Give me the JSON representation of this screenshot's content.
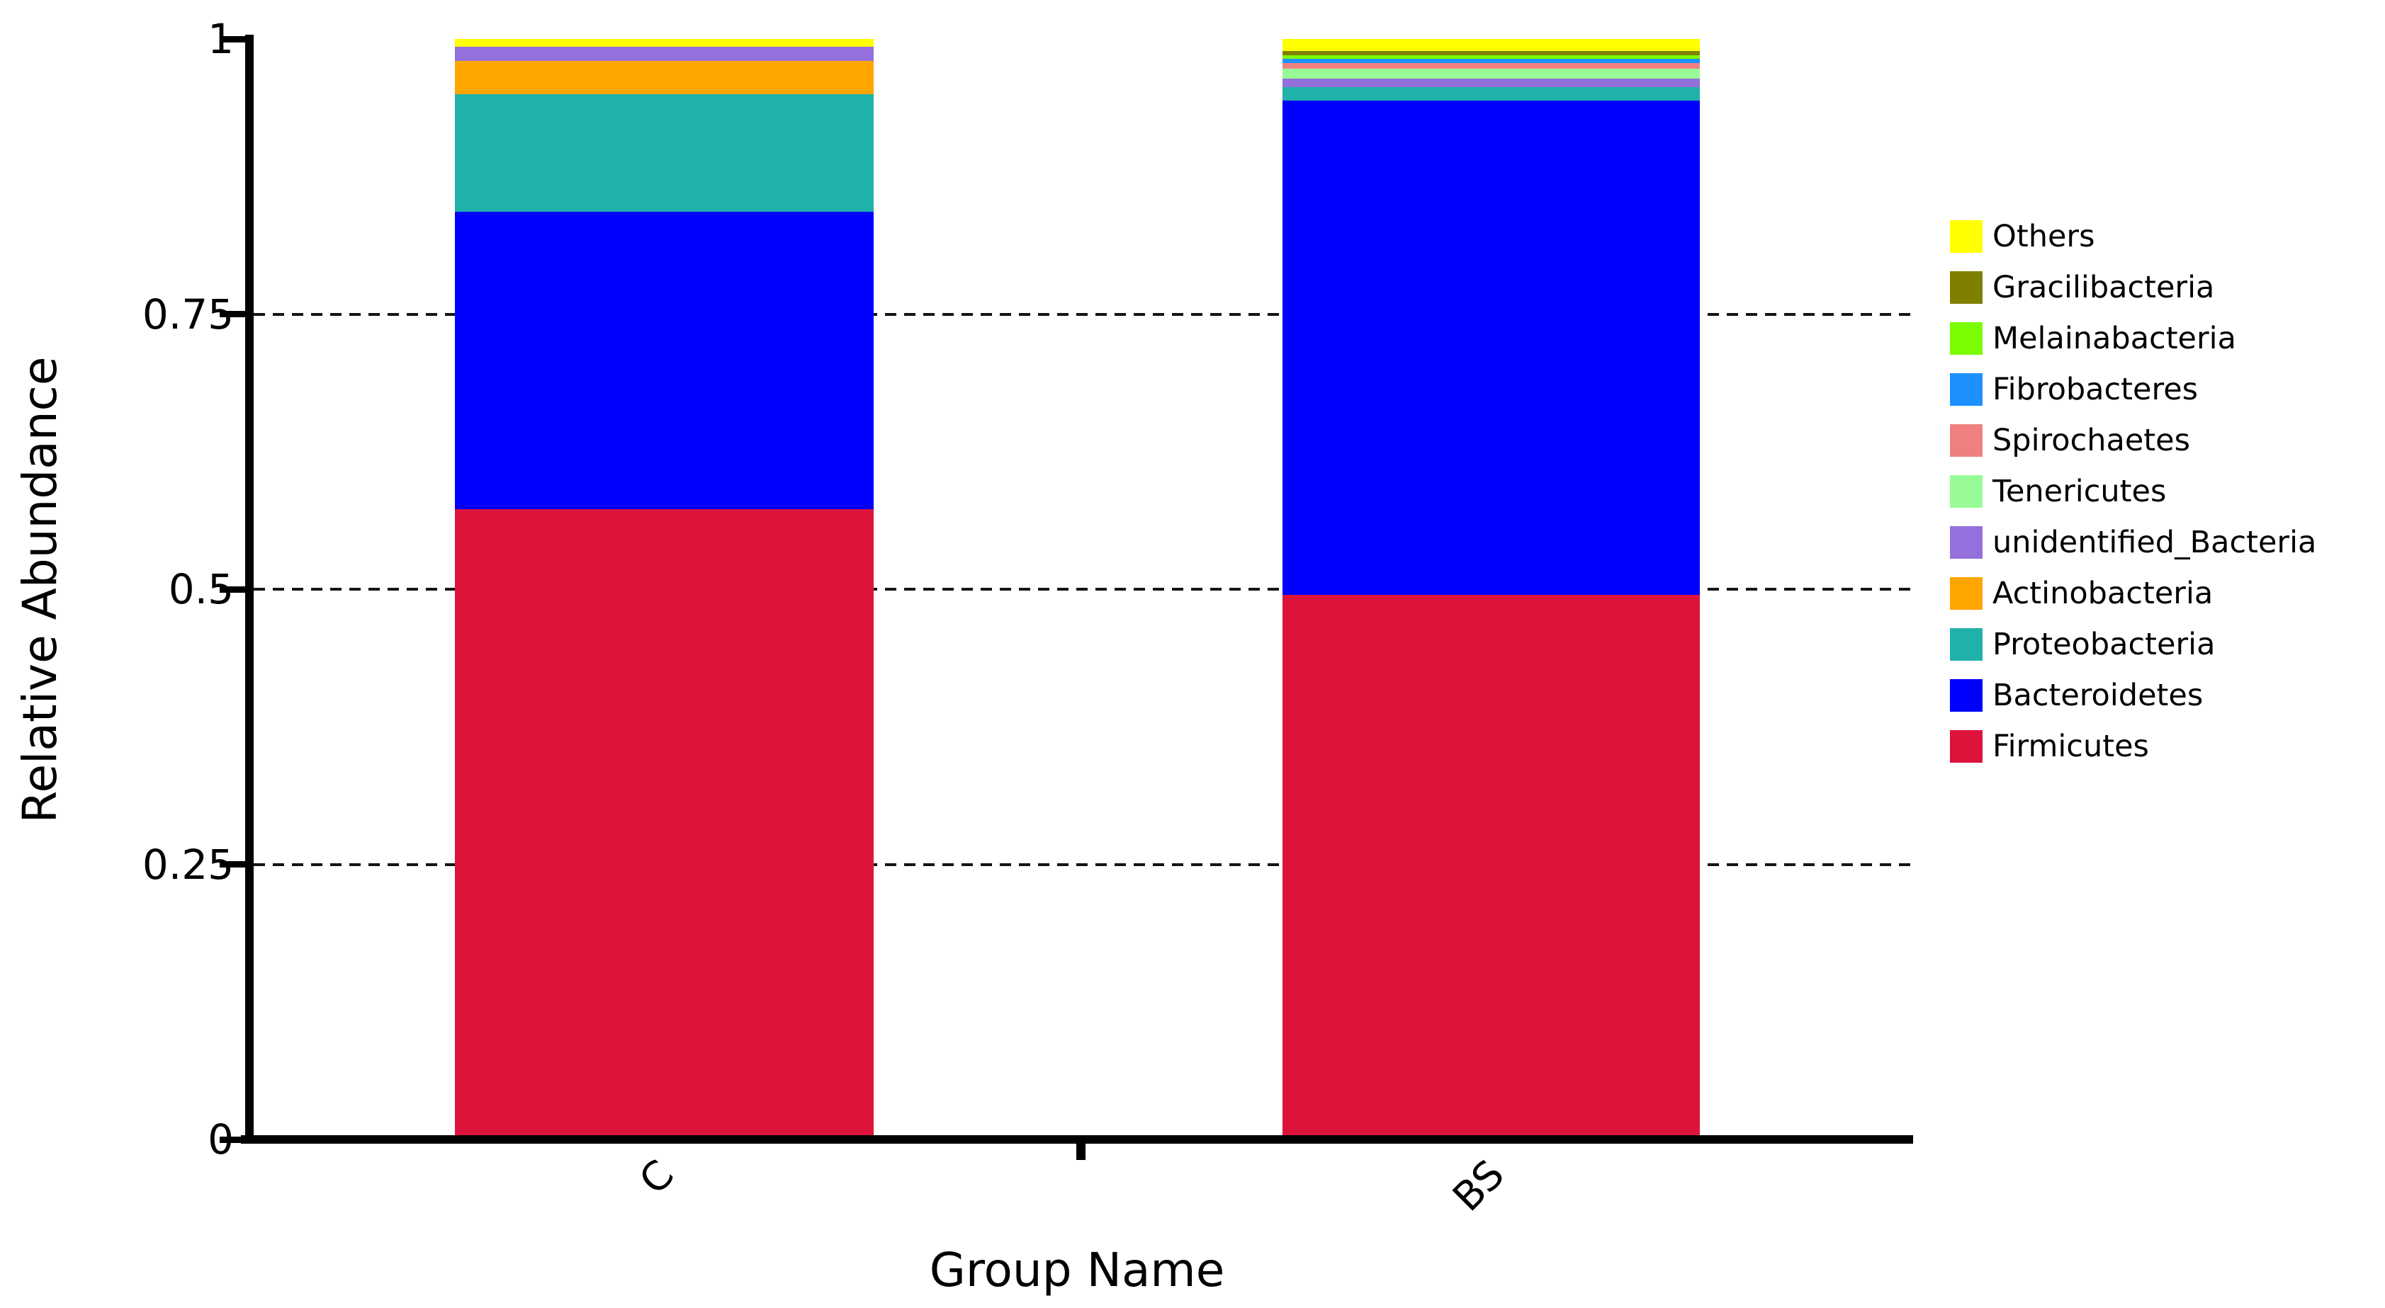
{
  "chart_data": {
    "type": "bar",
    "subtype": "stacked-vertical",
    "title": "",
    "xlabel": "Group Name",
    "ylabel": "Relative Abundance",
    "categories": [
      "C",
      "BS"
    ],
    "ylim": [
      0,
      1
    ],
    "yticks": [
      0,
      0.25,
      0.5,
      0.75,
      1
    ],
    "ytick_labels": [
      "0",
      "0.25",
      "0.5",
      "0.75",
      "1"
    ],
    "grid_values": [
      0.25,
      0.5,
      0.75
    ],
    "grid_style": "dashed",
    "legend_position": "right",
    "legend_order_top_to_bottom": [
      "Others",
      "Gracilibacteria",
      "Melainabacteria",
      "Fibrobacteres",
      "Spirochaetes",
      "Tenericutes",
      "unidentified_Bacteria",
      "Actinobacteria",
      "Proteobacteria",
      "Bacteroidetes",
      "Firmicutes"
    ],
    "series": [
      {
        "name": "Firmicutes",
        "color": "#DC143C",
        "values": [
          0.573,
          0.495
        ]
      },
      {
        "name": "Bacteroidetes",
        "color": "#0000FF",
        "values": [
          0.27,
          0.449
        ]
      },
      {
        "name": "Proteobacteria",
        "color": "#20B2AA",
        "values": [
          0.107,
          0.012
        ]
      },
      {
        "name": "Actinobacteria",
        "color": "#FFA500",
        "values": [
          0.03,
          0.0
        ]
      },
      {
        "name": "unidentified_Bacteria",
        "color": "#9370DB",
        "values": [
          0.013,
          0.008
        ]
      },
      {
        "name": "Tenericutes",
        "color": "#98FB98",
        "values": [
          0.0,
          0.009
        ]
      },
      {
        "name": "Spirochaetes",
        "color": "#F08080",
        "values": [
          0.0,
          0.005
        ]
      },
      {
        "name": "Fibrobacteres",
        "color": "#1E90FF",
        "values": [
          0.0,
          0.004
        ]
      },
      {
        "name": "Melainabacteria",
        "color": "#7CFC00",
        "values": [
          0.0,
          0.003
        ]
      },
      {
        "name": "Gracilibacteria",
        "color": "#808000",
        "values": [
          0.0,
          0.004
        ]
      },
      {
        "name": "Others",
        "color": "#FFFF00",
        "values": [
          0.007,
          0.011
        ]
      }
    ]
  },
  "axis_color": "#000000",
  "background_color": "#FFFFFF"
}
